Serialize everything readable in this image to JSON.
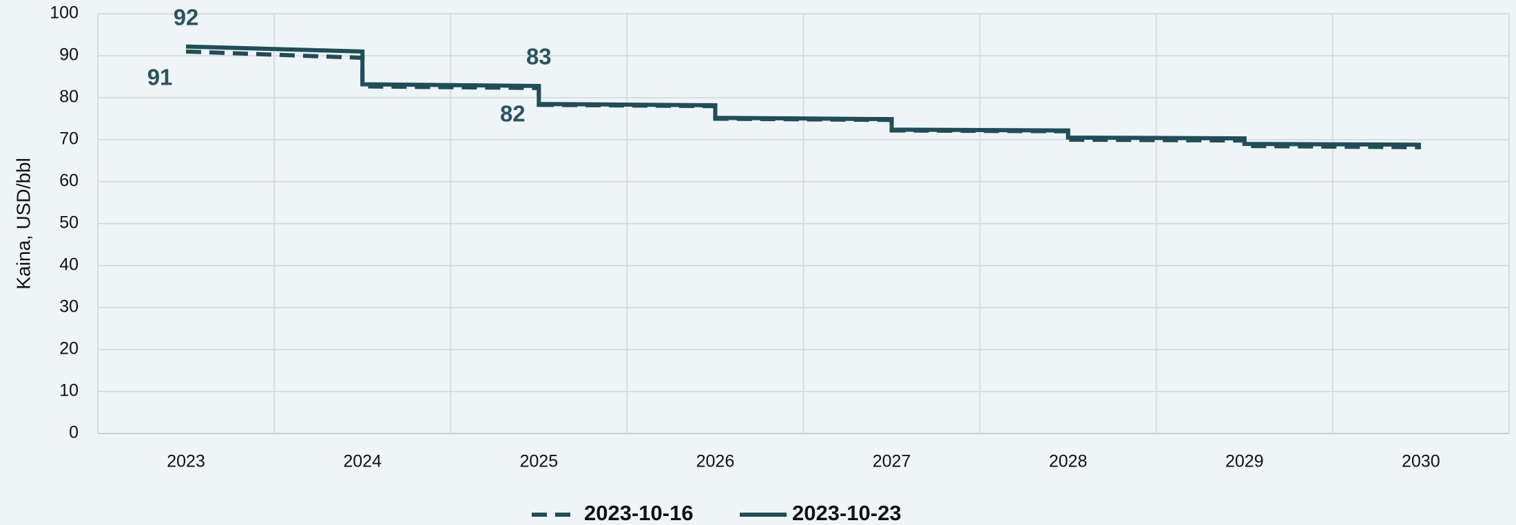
{
  "chart_data": {
    "type": "line",
    "y_label": "Kaina, USD/bbl",
    "xlim": [
      2022.5,
      2030.5
    ],
    "xticks": [
      2023,
      2024,
      2025,
      2026,
      2027,
      2028,
      2029,
      2030
    ],
    "ylim": [
      0,
      100
    ],
    "yticks": [
      0,
      10,
      20,
      30,
      40,
      50,
      60,
      70,
      80,
      90,
      100
    ],
    "grid": true,
    "legend": "bottom",
    "series": [
      {
        "name": "2023-10-16",
        "color": "#1f4e57",
        "dash": true,
        "x": [
          2023,
          2024,
          2024,
          2025,
          2025,
          2026,
          2026,
          2027,
          2027,
          2028,
          2028,
          2029,
          2029,
          2030
        ],
        "values": [
          91,
          89.5,
          82.7,
          82.3,
          78.3,
          78,
          75,
          74.7,
          72.2,
          72,
          70,
          69.8,
          68.5,
          68.2
        ],
        "value_labels": [
          "91",
          null,
          null,
          "82",
          null,
          null,
          null,
          null,
          null,
          null,
          null,
          null,
          null,
          null
        ]
      },
      {
        "name": "2023-10-23",
        "color": "#1f4e57",
        "dash": false,
        "x": [
          2023,
          2024,
          2024,
          2025,
          2025,
          2026,
          2026,
          2027,
          2027,
          2028,
          2028,
          2029,
          2029,
          2030
        ],
        "values": [
          92.2,
          91,
          83.2,
          82.8,
          78.5,
          78.2,
          75.2,
          74.9,
          72.4,
          72.2,
          70.5,
          70.3,
          69,
          68.8
        ],
        "value_labels": [
          "92",
          null,
          null,
          "83",
          null,
          null,
          null,
          null,
          null,
          null,
          null,
          null,
          null,
          null
        ]
      }
    ]
  }
}
